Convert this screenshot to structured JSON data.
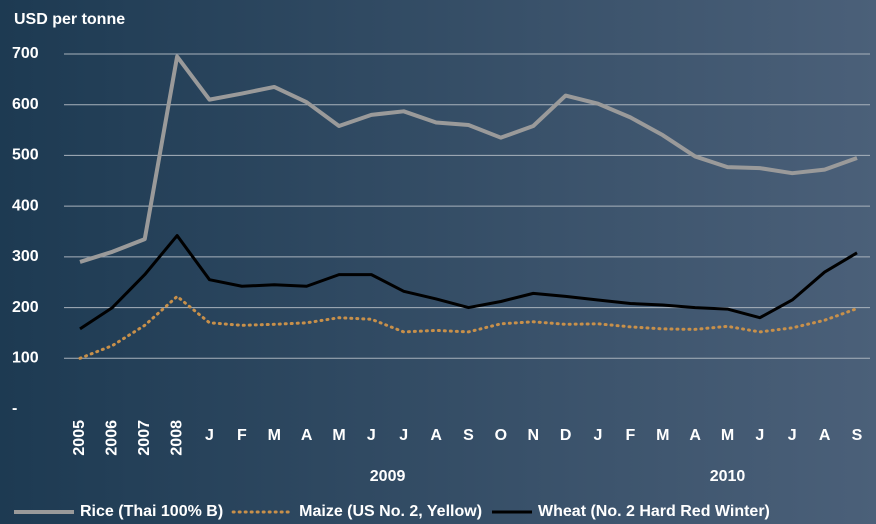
{
  "chart_data": {
    "type": "line",
    "y_axis_label": "USD per tonne",
    "categories": [
      "2005",
      "2006",
      "2007",
      "2008",
      "J",
      "F",
      "M",
      "A",
      "M",
      "J",
      "J",
      "A",
      "S",
      "O",
      "N",
      "D",
      "J",
      "F",
      "M",
      "A",
      "M",
      "J",
      "J",
      "A",
      "S"
    ],
    "x_groups": [
      {
        "label": "2009",
        "count": 12
      },
      {
        "label": "2010",
        "count": 9
      }
    ],
    "series": [
      {
        "name": "Rice (Thai 100% B)",
        "color": "#9a9a9a",
        "style": "solid",
        "values": [
          290,
          310,
          335,
          695,
          610,
          622,
          635,
          605,
          558,
          580,
          587,
          565,
          560,
          535,
          558,
          618,
          602,
          575,
          540,
          498,
          477,
          475,
          465,
          472,
          495
        ]
      },
      {
        "name": "Maize (US No. 2, Yellow)",
        "color": "#c8904a",
        "style": "dotted",
        "values": [
          100,
          125,
          165,
          222,
          170,
          165,
          167,
          170,
          180,
          177,
          152,
          155,
          152,
          168,
          172,
          167,
          168,
          162,
          158,
          157,
          163,
          152,
          160,
          175,
          198
        ]
      },
      {
        "name": "Wheat (No. 2 Hard Red Winter)",
        "color": "#000000",
        "style": "solid",
        "values": [
          158,
          200,
          265,
          342,
          255,
          242,
          245,
          242,
          265,
          265,
          232,
          217,
          200,
          212,
          228,
          222,
          215,
          208,
          205,
          200,
          197,
          180,
          215,
          270,
          308
        ]
      }
    ],
    "ylim": [
      0,
      700
    ],
    "yticks": [
      {
        "value": 0,
        "label": "-"
      },
      100,
      200,
      300,
      400,
      500,
      600,
      700
    ],
    "grid": true,
    "legend": "bottom"
  }
}
